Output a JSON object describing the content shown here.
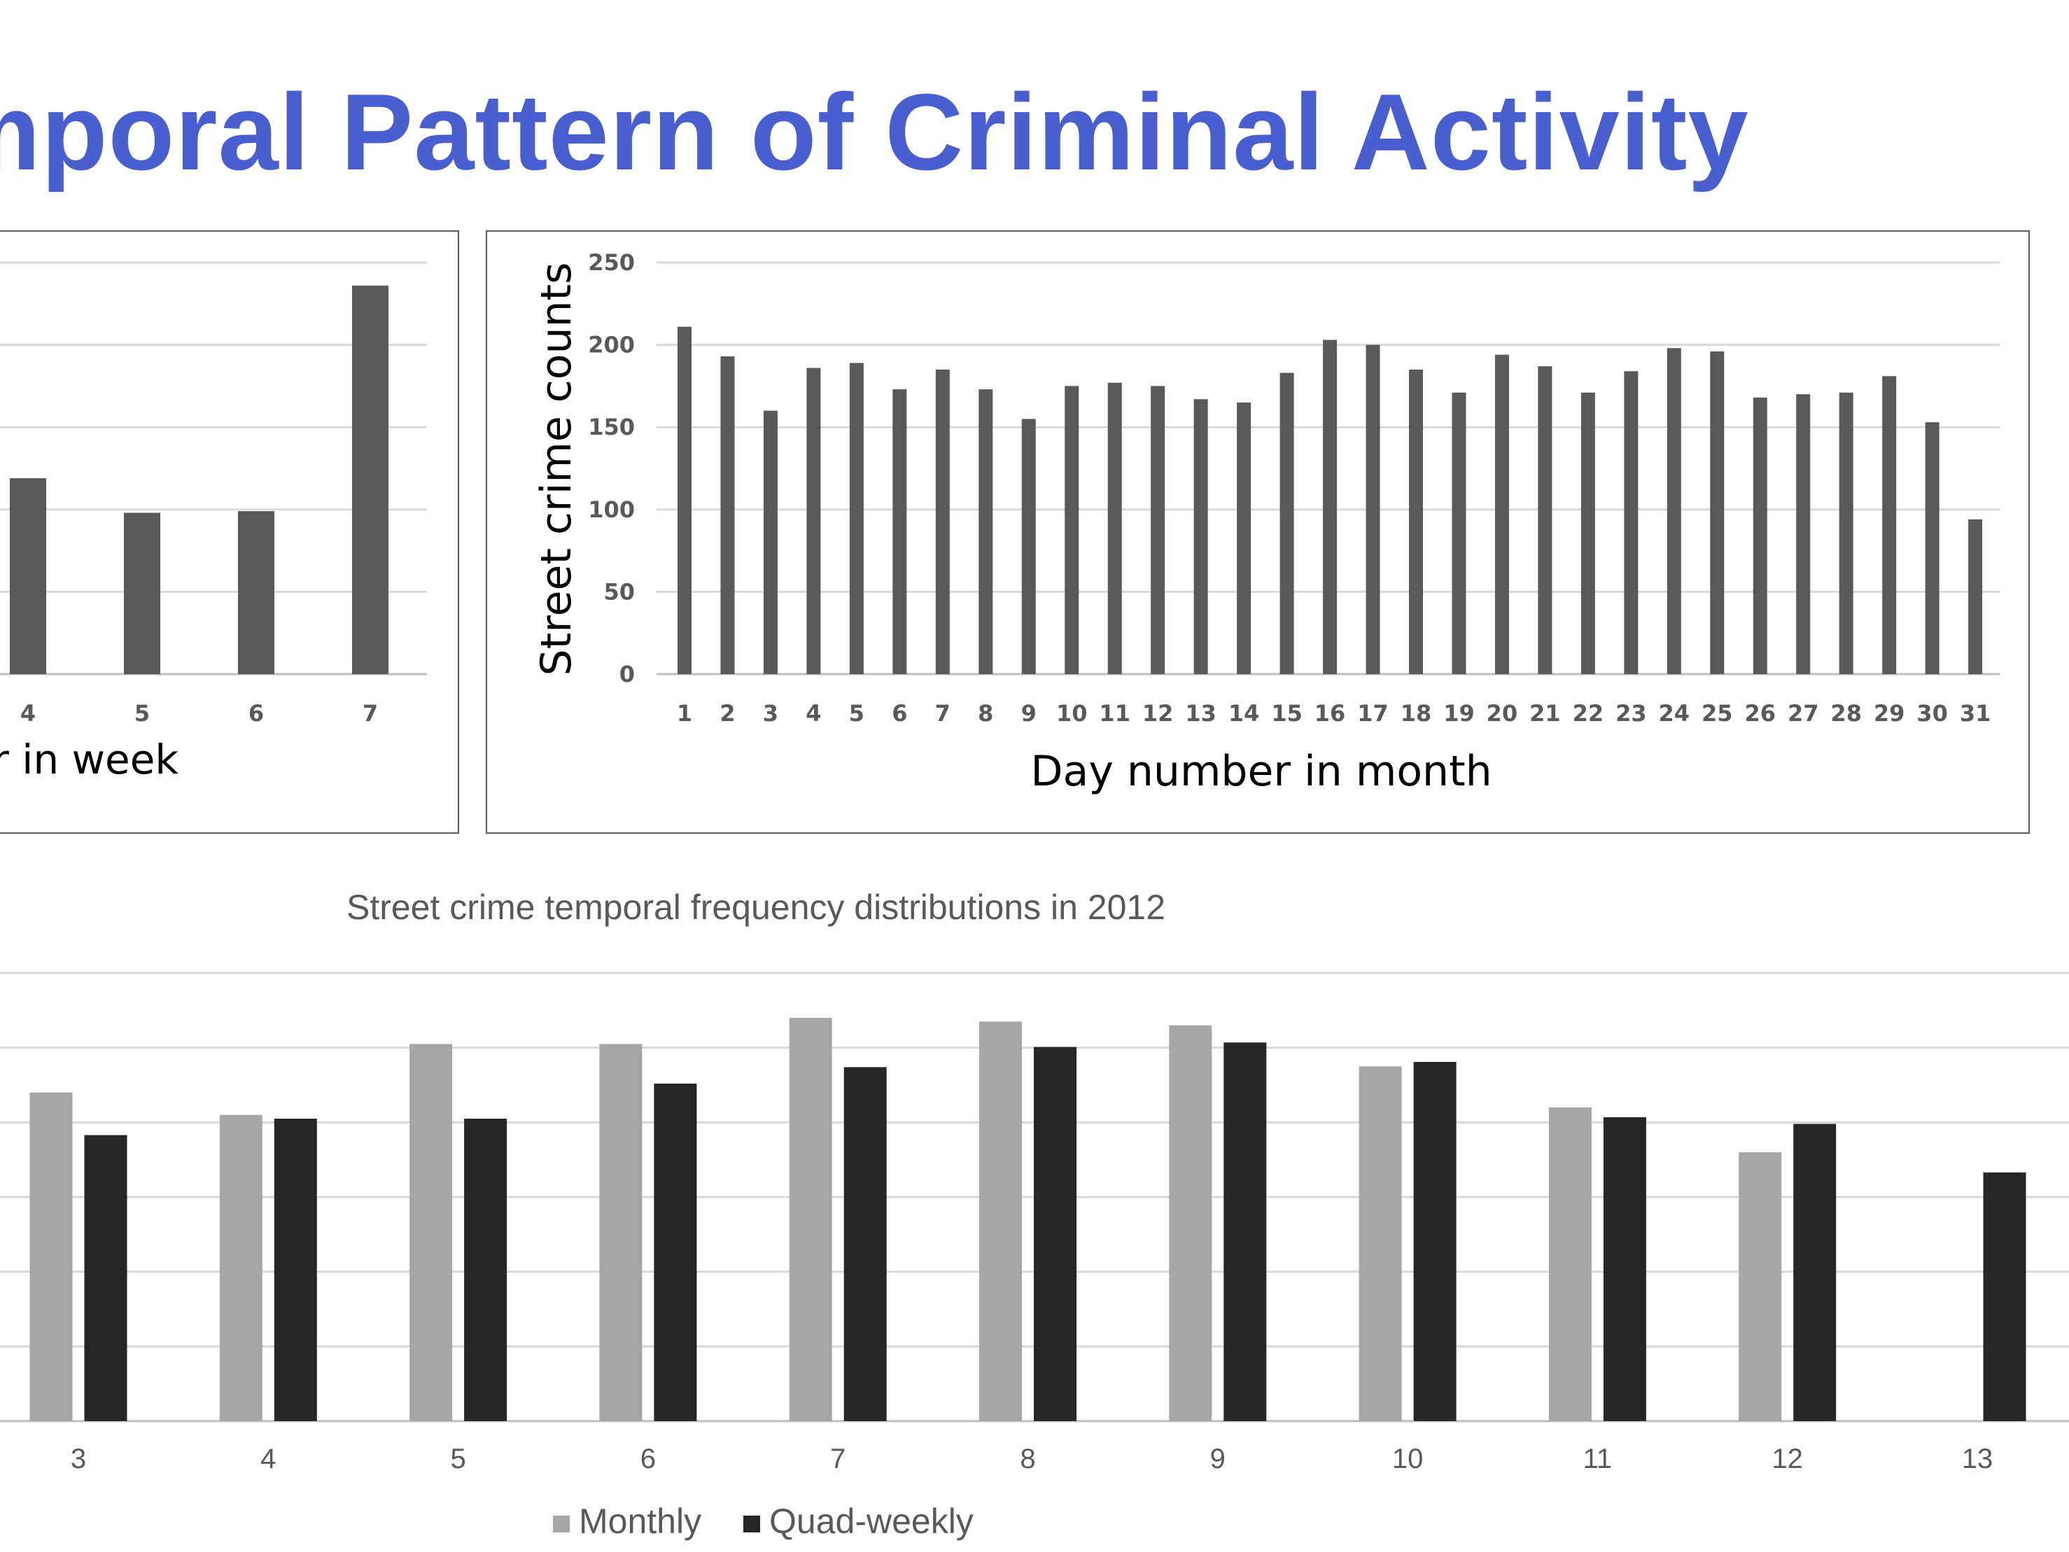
{
  "slide": {
    "title": "mporal Pattern of Criminal Activity",
    "title_color": "#4a5fcf"
  },
  "chart_data": [
    {
      "type": "bar",
      "categories": [
        "4",
        "5",
        "6",
        "7"
      ],
      "values": [
        119,
        98,
        99,
        236
      ],
      "ylim": [
        0,
        250
      ],
      "xlabel": "r in week",
      "ylabel": "",
      "grid": true,
      "color": "#595959"
    },
    {
      "type": "bar",
      "categories": [
        "1",
        "2",
        "3",
        "4",
        "5",
        "6",
        "7",
        "8",
        "9",
        "10",
        "11",
        "12",
        "13",
        "14",
        "15",
        "16",
        "17",
        "18",
        "19",
        "20",
        "21",
        "22",
        "23",
        "24",
        "25",
        "26",
        "27",
        "28",
        "29",
        "30",
        "31"
      ],
      "values": [
        211,
        193,
        160,
        186,
        189,
        173,
        185,
        173,
        155,
        175,
        177,
        175,
        167,
        165,
        183,
        203,
        200,
        185,
        171,
        194,
        187,
        171,
        184,
        198,
        196,
        168,
        170,
        171,
        181,
        153,
        94
      ],
      "ylim": [
        0,
        250
      ],
      "yticks": [
        "0",
        "50",
        "100",
        "150",
        "200",
        "250"
      ],
      "xlabel": "Day number in month",
      "ylabel": "Street crime counts",
      "grid": true,
      "color": "#595959"
    },
    {
      "type": "bar",
      "title": "Street crime temporal frequency distributions in 2012",
      "categories": [
        "3",
        "4",
        "5",
        "6",
        "7",
        "8",
        "9",
        "10",
        "11",
        "12",
        "13"
      ],
      "series": [
        {
          "name": "Monthly",
          "color": "#a6a6a6",
          "values": [
            4.4,
            4.1,
            5.05,
            5.05,
            5.4,
            5.35,
            5.3,
            4.75,
            4.2,
            3.6,
            null
          ]
        },
        {
          "name": "Quad-weekly",
          "color": "#262626",
          "values": [
            3.83,
            4.05,
            4.05,
            4.52,
            4.74,
            5.01,
            5.07,
            4.81,
            4.07,
            3.98,
            3.33
          ]
        }
      ],
      "ylim": [
        0,
        6
      ],
      "xlabel": "",
      "ylabel": "",
      "grid": true,
      "legend": "bottom"
    }
  ],
  "colors": {
    "axis_text": "#595959",
    "grid": "#d9d9d9",
    "frame": "#595959",
    "bottom_text": "#595959"
  }
}
